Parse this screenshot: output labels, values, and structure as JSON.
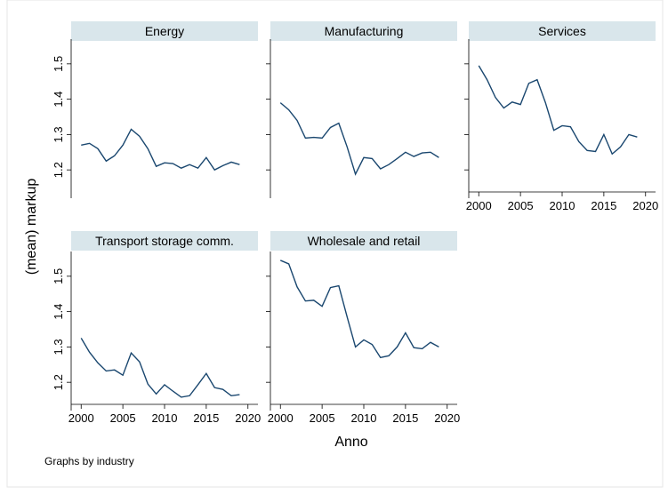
{
  "ylabel": "(mean) markup",
  "xlabel": "Anno",
  "note": "Graphs by industry",
  "xlim": [
    1998.8,
    2021.2
  ],
  "xticks": [
    2000,
    2005,
    2010,
    2015,
    2020
  ],
  "ylim": [
    1.12,
    1.57
  ],
  "yticks": [
    1.2,
    1.3,
    1.4,
    1.5
  ],
  "chart_data": [
    {
      "type": "line",
      "title": "Energy",
      "color": "#1a476f",
      "x": [
        2000,
        2001,
        2002,
        2003,
        2004,
        2005,
        2006,
        2007,
        2008,
        2009,
        2010,
        2011,
        2012,
        2013,
        2014,
        2015,
        2016,
        2017,
        2018,
        2019
      ],
      "values": [
        1.27,
        1.275,
        1.26,
        1.225,
        1.24,
        1.27,
        1.315,
        1.295,
        1.26,
        1.21,
        1.22,
        1.218,
        1.205,
        1.215,
        1.205,
        1.235,
        1.2,
        1.212,
        1.222,
        1.215
      ]
    },
    {
      "type": "line",
      "title": "Manufacturing",
      "color": "#1a476f",
      "x": [
        2000,
        2001,
        2002,
        2003,
        2004,
        2005,
        2006,
        2007,
        2008,
        2009,
        2010,
        2011,
        2012,
        2013,
        2014,
        2015,
        2016,
        2017,
        2018,
        2019
      ],
      "values": [
        1.39,
        1.37,
        1.34,
        1.29,
        1.292,
        1.29,
        1.32,
        1.332,
        1.265,
        1.188,
        1.235,
        1.232,
        1.203,
        1.215,
        1.232,
        1.25,
        1.238,
        1.248,
        1.25,
        1.235
      ]
    },
    {
      "type": "line",
      "title": "Services",
      "color": "#1a476f",
      "x": [
        2000,
        2001,
        2002,
        2003,
        2004,
        2005,
        2006,
        2007,
        2008,
        2009,
        2010,
        2011,
        2012,
        2013,
        2014,
        2015,
        2016,
        2017,
        2018,
        2019
      ],
      "values": [
        1.495,
        1.455,
        1.405,
        1.375,
        1.392,
        1.385,
        1.445,
        1.455,
        1.39,
        1.312,
        1.325,
        1.322,
        1.28,
        1.255,
        1.252,
        1.3,
        1.245,
        1.265,
        1.3,
        1.293
      ]
    },
    {
      "type": "line",
      "title": "Transport storage comm.",
      "color": "#1a476f",
      "x": [
        2000,
        2001,
        2002,
        2003,
        2004,
        2005,
        2006,
        2007,
        2008,
        2009,
        2010,
        2011,
        2012,
        2013,
        2014,
        2015,
        2016,
        2017,
        2018,
        2019
      ],
      "values": [
        1.325,
        1.285,
        1.255,
        1.232,
        1.235,
        1.22,
        1.283,
        1.258,
        1.195,
        1.167,
        1.193,
        1.175,
        1.158,
        1.162,
        1.193,
        1.225,
        1.185,
        1.18,
        1.162,
        1.165
      ]
    },
    {
      "type": "line",
      "title": "Wholesale and retail",
      "color": "#1a476f",
      "x": [
        2000,
        2001,
        2002,
        2003,
        2004,
        2005,
        2006,
        2007,
        2008,
        2009,
        2010,
        2011,
        2012,
        2013,
        2014,
        2015,
        2016,
        2017,
        2018,
        2019
      ],
      "values": [
        1.545,
        1.535,
        1.47,
        1.43,
        1.432,
        1.415,
        1.468,
        1.473,
        1.385,
        1.3,
        1.32,
        1.307,
        1.27,
        1.275,
        1.3,
        1.34,
        1.298,
        1.295,
        1.313,
        1.3
      ]
    }
  ]
}
